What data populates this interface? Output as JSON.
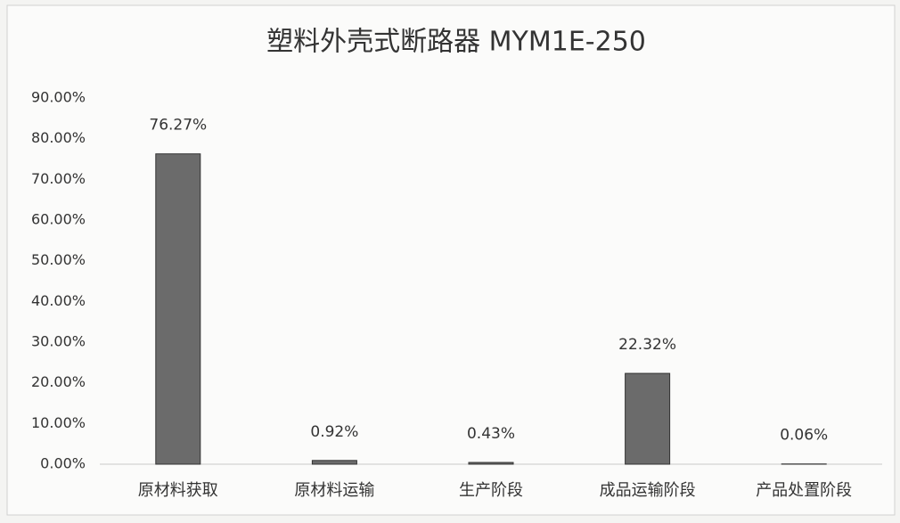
{
  "chart_data": {
    "type": "bar",
    "title": "塑料外壳式断路器 MYM1E-250",
    "categories": [
      "原材料获取",
      "原材料运输",
      "生产阶段",
      "成品运输阶段",
      "产品处置阶段"
    ],
    "values": [
      76.27,
      0.92,
      0.43,
      22.32,
      0.06
    ],
    "value_labels": [
      "76.27%",
      "0.92%",
      "0.43%",
      "22.32%",
      "0.06%"
    ],
    "color": "#6b6b6b",
    "ylim": [
      0,
      90
    ],
    "yticks": [
      {
        "value": 0,
        "label": "0.00%"
      },
      {
        "value": 10,
        "label": "10.00%"
      },
      {
        "value": 20,
        "label": "20.00%"
      },
      {
        "value": 30,
        "label": "30.00%"
      },
      {
        "value": 40,
        "label": "40.00%"
      },
      {
        "value": 50,
        "label": "50.00%"
      },
      {
        "value": 60,
        "label": "60.00%"
      },
      {
        "value": 70,
        "label": "70.00%"
      },
      {
        "value": 80,
        "label": "80.00%"
      },
      {
        "value": 90,
        "label": "90.00%"
      }
    ],
    "grid": false
  }
}
